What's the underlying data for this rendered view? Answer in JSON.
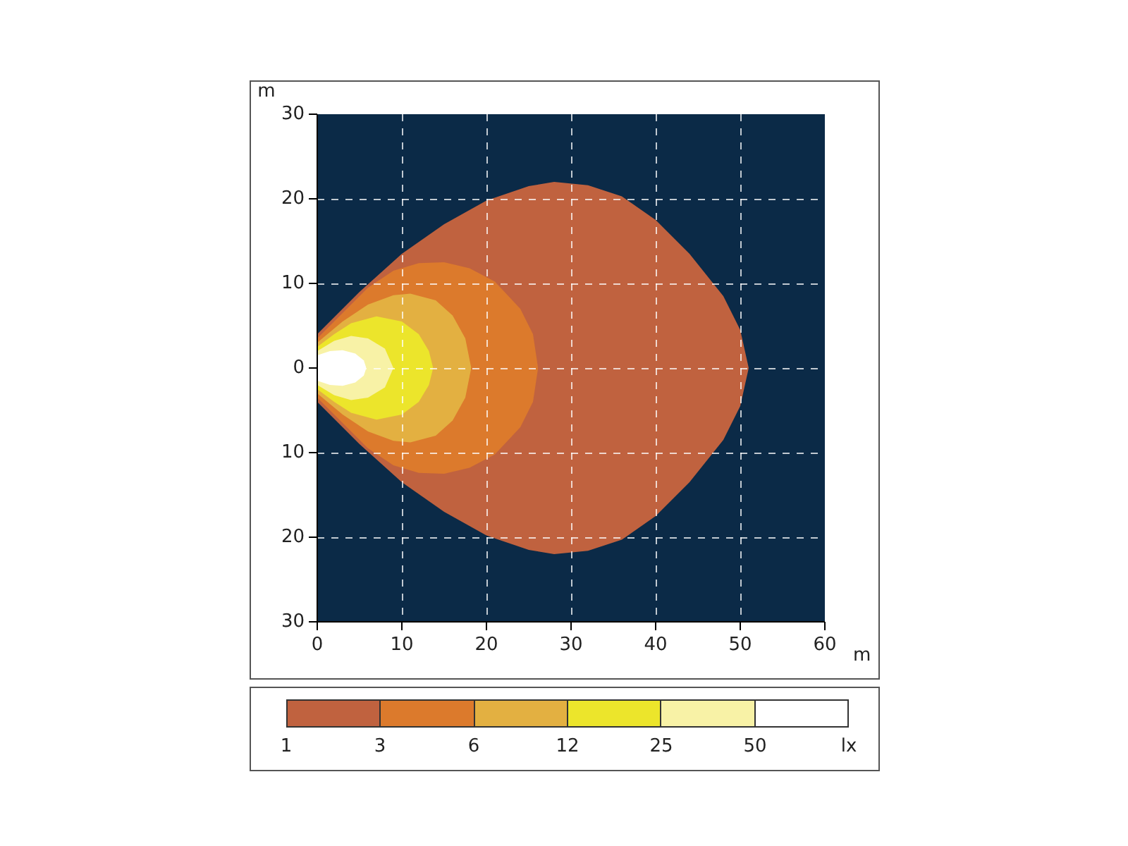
{
  "chart_data": {
    "type": "area",
    "xlabel": "m",
    "ylabel": "m",
    "xlim": [
      0,
      60
    ],
    "xticks": [
      0,
      10,
      20,
      30,
      40,
      50,
      60
    ],
    "ylim": [
      -30,
      30
    ],
    "yticks": [
      {
        "value": -30,
        "label": "30"
      },
      {
        "value": -20,
        "label": "20"
      },
      {
        "value": -10,
        "label": "10"
      },
      0,
      10,
      20,
      30
    ],
    "grid": true,
    "legend": false,
    "clabel": "lx",
    "annotations": [
      "1",
      "3",
      "6",
      "12",
      "25",
      "50"
    ],
    "series": [
      {
        "color": "#c0623f",
        "x": [
          0,
          5,
          10,
          15,
          20,
          25,
          28,
          32,
          36,
          40,
          44,
          48,
          50,
          51
        ],
        "values": [
          4,
          9,
          13.5,
          17,
          19.8,
          21.5,
          22,
          21.6,
          20.3,
          17.5,
          13.5,
          8.5,
          4.5,
          0
        ]
      },
      {
        "color": "#c0623f",
        "x": [
          0,
          5,
          10,
          15,
          20,
          25,
          28,
          32,
          36,
          40,
          44,
          48,
          50,
          51
        ],
        "values": [
          -4,
          -9,
          -13.5,
          -17,
          -19.8,
          -21.5,
          -22,
          -21.6,
          -20.3,
          -17.5,
          -13.5,
          -8.5,
          -4.5,
          0
        ]
      },
      {
        "color": "#dc7a2c",
        "x": [
          0,
          3,
          6,
          9,
          12,
          15,
          18,
          21,
          24,
          25.5,
          26.1
        ],
        "values": [
          3.5,
          6.5,
          9.5,
          11.5,
          12.4,
          12.5,
          11.8,
          10.2,
          7,
          4,
          0
        ]
      },
      {
        "color": "#dc7a2c",
        "x": [
          0,
          3,
          6,
          9,
          12,
          15,
          18,
          21,
          24,
          25.5,
          26.1
        ],
        "values": [
          -3.5,
          -6.5,
          -9.5,
          -11.5,
          -12.4,
          -12.5,
          -11.8,
          -10.2,
          -7,
          -4,
          0
        ]
      },
      {
        "color": "#e3b041",
        "x": [
          0,
          3,
          6,
          9,
          11,
          14,
          16,
          17.5,
          18.2
        ],
        "values": [
          3,
          5.5,
          7.5,
          8.6,
          8.8,
          8,
          6.2,
          3.5,
          0
        ]
      },
      {
        "color": "#e3b041",
        "x": [
          0,
          3,
          6,
          9,
          11,
          14,
          16,
          17.5,
          18.2
        ],
        "values": [
          -3,
          -5.5,
          -7.5,
          -8.6,
          -8.8,
          -8,
          -6.2,
          -3.5,
          0
        ]
      },
      {
        "color": "#ece52b",
        "x": [
          0,
          2,
          4,
          7,
          10,
          12,
          13.2,
          13.7
        ],
        "values": [
          2.5,
          4,
          5.3,
          6.1,
          5.5,
          4,
          2,
          0
        ]
      },
      {
        "color": "#ece52b",
        "x": [
          0,
          2,
          4,
          7,
          10,
          12,
          13.2,
          13.7
        ],
        "values": [
          -2.5,
          -4,
          -5.3,
          -6.1,
          -5.5,
          -4,
          -2,
          0
        ]
      },
      {
        "color": "#f8f2a6",
        "x": [
          0,
          2,
          4,
          6,
          8,
          9
        ],
        "values": [
          2,
          3.2,
          3.8,
          3.5,
          2.3,
          0
        ]
      },
      {
        "color": "#f8f2a6",
        "x": [
          0,
          2,
          4,
          6,
          8,
          9
        ],
        "values": [
          -2,
          -3.2,
          -3.8,
          -3.5,
          -2.3,
          0
        ]
      },
      {
        "color": "#ffffff",
        "x": [
          0,
          1.5,
          3,
          4.5,
          5.5,
          5.8
        ],
        "values": [
          1.5,
          2,
          2.1,
          1.7,
          0.9,
          0
        ]
      },
      {
        "color": "#ffffff",
        "x": [
          0,
          1.5,
          3,
          4.5,
          5.5,
          5.8
        ],
        "values": [
          -1.5,
          -2,
          -2.1,
          -1.7,
          -0.9,
          0
        ]
      }
    ]
  }
}
